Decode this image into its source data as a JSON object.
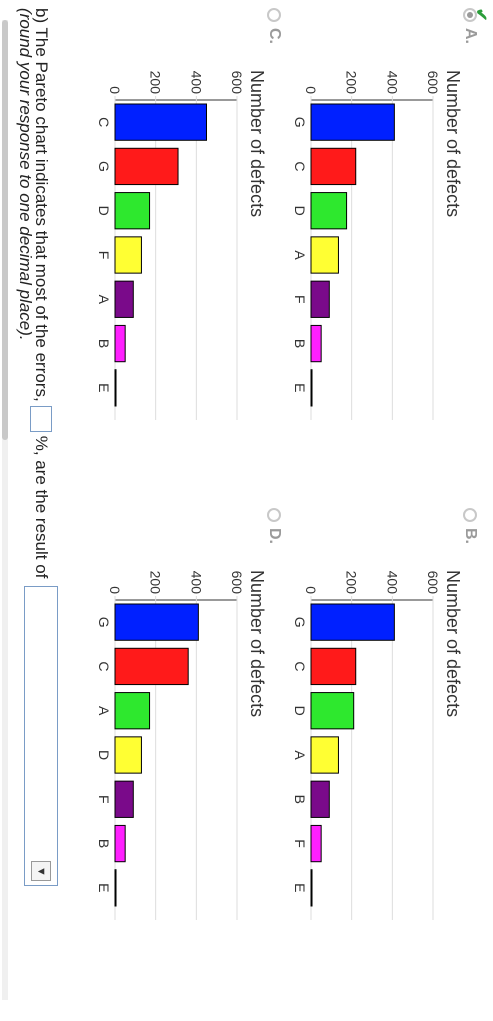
{
  "options": [
    {
      "id": "A",
      "label": "A.",
      "selected": true,
      "chart": {
        "type": "bar",
        "categories": [
          "G",
          "C",
          "D",
          "A",
          "F",
          "B",
          "E"
        ],
        "values": [
          410,
          220,
          175,
          135,
          90,
          50,
          5
        ],
        "ylabel": "Number of defects",
        "ylim": [
          0,
          600
        ],
        "yticks": [
          "0",
          "200",
          "400",
          "600"
        ]
      }
    },
    {
      "id": "B",
      "label": "B.",
      "selected": false,
      "chart": {
        "type": "bar",
        "categories": [
          "G",
          "C",
          "D",
          "A",
          "B",
          "F",
          "E"
        ],
        "values": [
          410,
          220,
          210,
          135,
          90,
          50,
          5
        ],
        "ylabel": "Number of defects",
        "ylim": [
          0,
          600
        ],
        "yticks": [
          "0",
          "200",
          "400",
          "600"
        ]
      }
    },
    {
      "id": "C",
      "label": "C.",
      "selected": false,
      "chart": {
        "type": "bar",
        "categories": [
          "C",
          "G",
          "D",
          "F",
          "A",
          "B",
          "E"
        ],
        "values": [
          450,
          310,
          170,
          130,
          90,
          50,
          5
        ],
        "ylabel": "Number of defects",
        "ylim": [
          0,
          600
        ],
        "yticks": [
          "0",
          "200",
          "400",
          "600"
        ]
      }
    },
    {
      "id": "D",
      "label": "D.",
      "selected": false,
      "chart": {
        "type": "bar",
        "categories": [
          "G",
          "C",
          "A",
          "D",
          "F",
          "B",
          "E"
        ],
        "values": [
          410,
          360,
          170,
          130,
          90,
          50,
          5
        ],
        "ylabel": "Number of defects",
        "ylim": [
          0,
          600
        ],
        "yticks": [
          "0",
          "200",
          "400",
          "600"
        ]
      }
    }
  ],
  "colors": [
    "#0020ff",
    "#ff1a1a",
    "#2ee82e",
    "#ffff33",
    "#7a0a8a",
    "#ff20ff",
    "#1a5a4a"
  ],
  "chart_data": [
    {
      "type": "bar",
      "categories": [
        "G",
        "C",
        "D",
        "A",
        "F",
        "B",
        "E"
      ],
      "values": [
        410,
        220,
        175,
        135,
        90,
        50,
        5
      ],
      "ylabel": "Number of defects",
      "ylim": [
        0,
        600
      ]
    },
    {
      "type": "bar",
      "categories": [
        "G",
        "C",
        "D",
        "A",
        "B",
        "F",
        "E"
      ],
      "values": [
        410,
        220,
        210,
        135,
        90,
        50,
        5
      ],
      "ylabel": "Number of defects",
      "ylim": [
        0,
        600
      ]
    },
    {
      "type": "bar",
      "categories": [
        "C",
        "G",
        "D",
        "F",
        "A",
        "B",
        "E"
      ],
      "values": [
        450,
        310,
        170,
        130,
        90,
        50,
        5
      ],
      "ylabel": "Number of defects",
      "ylim": [
        0,
        600
      ]
    },
    {
      "type": "bar",
      "categories": [
        "G",
        "C",
        "A",
        "D",
        "F",
        "B",
        "E"
      ],
      "values": [
        410,
        360,
        170,
        130,
        90,
        50,
        5
      ],
      "ylabel": "Number of defects",
      "ylim": [
        0,
        600
      ]
    }
  ],
  "question": {
    "part1": "b) The Pareto chart indicates that most of the errors,",
    "part2": "%, are the result of",
    "note": "(round your response to one decimal place)."
  },
  "select_button_icon": "dropdown-arrow-icon"
}
